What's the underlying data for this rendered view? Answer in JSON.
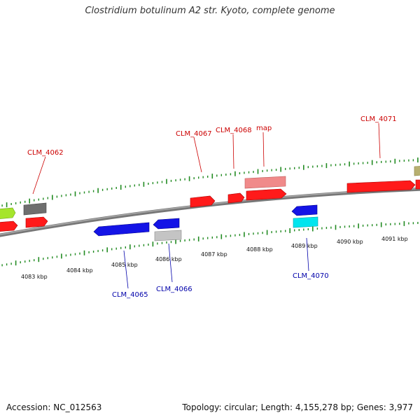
{
  "header": {
    "title": "Clostridium botulinum A2 str. Kyoto, complete genome"
  },
  "footer": {
    "accession": "Accession: NC_012563",
    "stats": "Topology: circular; Length: 4,155,278 bp; Genes: 3,977"
  },
  "colors": {
    "forward_gene": "#ff0000",
    "reverse_gene": "#0000ff",
    "forward_label": "#cc0000",
    "reverse_label": "#0000aa",
    "tick": "#228b22",
    "backbone": "#888888"
  },
  "scale_labels": [
    "4083 kbp",
    "4084 kbp",
    "4085 kbp",
    "4086 kbp",
    "4087 kbp",
    "4088 kbp",
    "4089 kbp",
    "4090 kbp",
    "4091 kbp"
  ],
  "forward_labels": [
    "CLM_4062",
    "CLM_4067",
    "CLM_4068",
    "map",
    "CLM_4071"
  ],
  "reverse_labels": [
    "CLM_4065",
    "CLM_4066",
    "CLM_4070"
  ]
}
